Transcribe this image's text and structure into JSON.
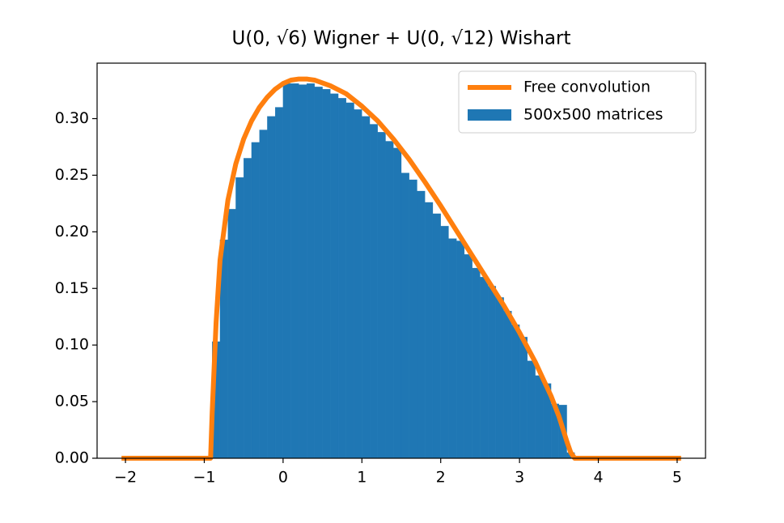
{
  "chart_data": {
    "title": "U(0, √6) Wigner + U(0, √12) Wishart",
    "xlim": [
      -2.36,
      5.36
    ],
    "ylim": [
      0,
      0.349
    ],
    "xticks": [
      {
        "value": -2,
        "label": "−2"
      },
      {
        "value": -1,
        "label": "−1"
      },
      0,
      1,
      2,
      3,
      4,
      5
    ],
    "yticks": [
      {
        "value": 0,
        "label": "0.00"
      },
      {
        "value": 0.05,
        "label": "0.05"
      },
      {
        "value": 0.1,
        "label": "0.10"
      },
      {
        "value": 0.15,
        "label": "0.15"
      },
      {
        "value": 0.2,
        "label": "0.20"
      },
      {
        "value": 0.25,
        "label": "0.25"
      },
      {
        "value": 0.3,
        "label": "0.30"
      }
    ],
    "legend": "upper right",
    "layers": [
      {
        "type": "histogram",
        "name": "500x500 matrices",
        "color": "#1f77b4",
        "bins": [
          -0.9,
          -0.8,
          -0.7,
          -0.6,
          -0.5,
          -0.4,
          -0.3,
          -0.2,
          -0.1,
          0,
          0.1,
          0.2,
          0.3,
          0.4,
          0.5,
          0.6,
          0.7,
          0.8,
          0.9,
          1.0,
          1.1,
          1.2,
          1.3,
          1.4,
          1.5,
          1.6,
          1.7,
          1.8,
          1.9,
          2.0,
          2.1,
          2.2,
          2.3,
          2.4,
          2.5,
          2.6,
          2.7,
          2.8,
          2.9,
          3.0,
          3.1,
          3.2,
          3.3,
          3.4,
          3.5,
          3.6,
          3.7
        ],
        "counts": [
          0.103,
          0.193,
          0.22,
          0.248,
          0.265,
          0.279,
          0.29,
          0.302,
          0.31,
          0.331,
          0.331,
          0.33,
          0.331,
          0.328,
          0.326,
          0.322,
          0.318,
          0.314,
          0.308,
          0.302,
          0.295,
          0.288,
          0.28,
          0.274,
          0.252,
          0.246,
          0.236,
          0.226,
          0.216,
          0.205,
          0.194,
          0.192,
          0.18,
          0.168,
          0.16,
          0.152,
          0.142,
          0.13,
          0.118,
          0.107,
          0.086,
          0.073,
          0.066,
          0.048,
          0.047,
          0.005
        ]
      },
      {
        "type": "line",
        "name": "Free convolution",
        "color": "#ff7f0e",
        "x": [
          -2.05,
          -0.92,
          -0.9,
          -0.85,
          -0.8,
          -0.7,
          -0.6,
          -0.5,
          -0.4,
          -0.3,
          -0.2,
          -0.1,
          0,
          0.1,
          0.2,
          0.3,
          0.4,
          0.6,
          0.8,
          1.0,
          1.2,
          1.4,
          1.6,
          1.8,
          2.0,
          2.2,
          2.4,
          2.6,
          2.8,
          3.0,
          3.2,
          3.4,
          3.5,
          3.6,
          3.65,
          3.7,
          3.72,
          5.05
        ],
        "y": [
          0,
          0,
          0.04,
          0.12,
          0.175,
          0.228,
          0.26,
          0.282,
          0.298,
          0.31,
          0.319,
          0.326,
          0.331,
          0.334,
          0.335,
          0.335,
          0.334,
          0.329,
          0.322,
          0.311,
          0.298,
          0.282,
          0.264,
          0.244,
          0.223,
          0.201,
          0.179,
          0.157,
          0.135,
          0.111,
          0.085,
          0.055,
          0.037,
          0.015,
          0.005,
          0,
          0,
          0
        ]
      }
    ]
  }
}
